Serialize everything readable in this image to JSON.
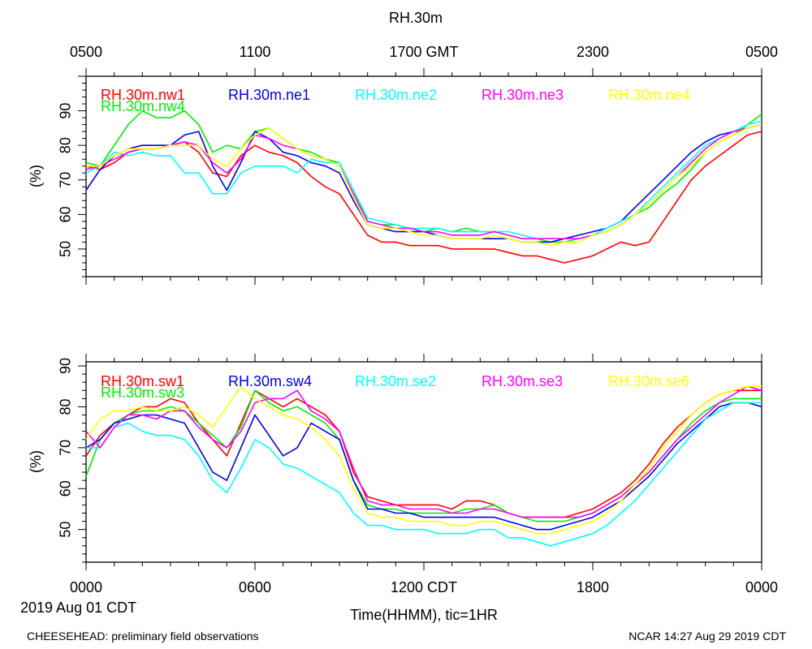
{
  "page": {
    "title": "RH.30m",
    "top_axis_ticks": [
      "0500",
      "1100",
      "1700 GMT",
      "2300",
      "0500"
    ],
    "bottom_axis_ticks": [
      "0000",
      "0600",
      "1200 CDT",
      "1800",
      "0000"
    ],
    "date_label": "2019 Aug 01 CDT",
    "xlabel": "Time(HHMM), tic=1HR",
    "footer_left": "CHEESEHEAD: preliminary field observations",
    "footer_right": "NCAR 14:27 Aug 29 2019 CDT"
  },
  "chart_data": [
    {
      "type": "line",
      "title": "RH.30m",
      "ylabel": "(%)",
      "ylim": [
        42,
        100
      ],
      "yticks": [
        "50",
        "60",
        "70",
        "80",
        "90"
      ],
      "xlim": [
        0,
        24
      ],
      "x": [
        0,
        0.5,
        1,
        1.5,
        2,
        2.5,
        3,
        3.5,
        4,
        4.5,
        5,
        5.5,
        6,
        6.5,
        7,
        7.5,
        8,
        8.5,
        9,
        9.5,
        10,
        10.5,
        11,
        11.5,
        12,
        12.5,
        13,
        13.5,
        14,
        14.5,
        15,
        15.5,
        16,
        16.5,
        17,
        17.5,
        18,
        18.5,
        19,
        19.5,
        20,
        20.5,
        21,
        21.5,
        22,
        22.5,
        23,
        23.5,
        24
      ],
      "series": [
        {
          "name": "RH.30m.nw1",
          "color": "#ff0000",
          "values": [
            74,
            73,
            75,
            78,
            79,
            79,
            80,
            81,
            78,
            72,
            71,
            77,
            80,
            78,
            77,
            75,
            71,
            68,
            66,
            60,
            54,
            52,
            52,
            51,
            51,
            51,
            50,
            50,
            50,
            50,
            49,
            48,
            48,
            47,
            46,
            47,
            48,
            50,
            52,
            51,
            52,
            58,
            64,
            70,
            74,
            77,
            80,
            83,
            84
          ]
        },
        {
          "name": "RH.30m.nw4",
          "color": "#00ee00",
          "values": [
            75,
            74,
            80,
            86,
            90,
            88,
            88,
            90,
            86,
            78,
            80,
            79,
            84,
            85,
            82,
            79,
            78,
            76,
            75,
            67,
            58,
            57,
            57,
            56,
            55,
            56,
            55,
            56,
            55,
            55,
            54,
            53,
            53,
            52,
            52,
            53,
            54,
            55,
            57,
            60,
            62,
            66,
            69,
            73,
            78,
            81,
            83,
            86,
            89
          ]
        },
        {
          "name": "RH.30m.ne1",
          "color": "#0000ee",
          "values": [
            67,
            73,
            77,
            79,
            80,
            80,
            80,
            83,
            84,
            74,
            67,
            75,
            84,
            82,
            78,
            77,
            75,
            74,
            72,
            64,
            57,
            56,
            55,
            55,
            55,
            54,
            53,
            53,
            53,
            53,
            53,
            52,
            52,
            52,
            53,
            54,
            55,
            56,
            58,
            62,
            66,
            70,
            74,
            78,
            81,
            83,
            84,
            85,
            86
          ]
        },
        {
          "name": "RH.30m.ne2",
          "color": "#00ffff",
          "values": [
            72,
            74,
            78,
            77,
            78,
            77,
            77,
            72,
            72,
            66,
            66,
            72,
            74,
            74,
            74,
            72,
            76,
            75,
            75,
            67,
            59,
            58,
            57,
            56,
            56,
            56,
            55,
            55,
            55,
            55,
            55,
            54,
            53,
            53,
            53,
            53,
            54,
            56,
            58,
            60,
            64,
            68,
            72,
            76,
            80,
            82,
            84,
            86,
            87
          ]
        },
        {
          "name": "RH.30m.ne3",
          "color": "#ff00ff",
          "values": [
            73,
            74,
            76,
            78,
            79,
            79,
            80,
            81,
            80,
            75,
            72,
            76,
            83,
            82,
            80,
            79,
            77,
            76,
            74,
            66,
            58,
            57,
            56,
            56,
            55,
            55,
            54,
            54,
            54,
            55,
            54,
            53,
            53,
            53,
            53,
            53,
            54,
            55,
            57,
            60,
            63,
            67,
            71,
            75,
            79,
            82,
            84,
            85,
            86
          ]
        },
        {
          "name": "RH.30m.ne4",
          "color": "#ffff00",
          "values": [
            74,
            74,
            77,
            79,
            79,
            79,
            80,
            80,
            80,
            76,
            74,
            79,
            83,
            85,
            82,
            79,
            77,
            76,
            74,
            65,
            57,
            56,
            56,
            55,
            54,
            54,
            53,
            53,
            53,
            54,
            53,
            52,
            52,
            51,
            52,
            52,
            54,
            55,
            57,
            60,
            63,
            67,
            71,
            74,
            78,
            81,
            83,
            85,
            86
          ]
        }
      ]
    },
    {
      "type": "line",
      "title": "",
      "ylabel": "(%)",
      "ylim": [
        42,
        91
      ],
      "yticks": [
        "50",
        "60",
        "70",
        "80",
        "90"
      ],
      "xlim": [
        0,
        24
      ],
      "xticks": [
        "0000",
        "0600",
        "1200 CDT",
        "1800",
        "0000"
      ],
      "x": [
        0,
        0.5,
        1,
        1.5,
        2,
        2.5,
        3,
        3.5,
        4,
        4.5,
        5,
        5.5,
        6,
        6.5,
        7,
        7.5,
        8,
        8.5,
        9,
        9.5,
        10,
        10.5,
        11,
        11.5,
        12,
        12.5,
        13,
        13.5,
        14,
        14.5,
        15,
        15.5,
        16,
        16.5,
        17,
        17.5,
        18,
        18.5,
        19,
        19.5,
        20,
        20.5,
        21,
        21.5,
        22,
        22.5,
        23,
        23.5,
        24
      ],
      "series": [
        {
          "name": "RH.30m.sw1",
          "color": "#ff0000",
          "values": [
            68,
            73,
            76,
            78,
            80,
            80,
            82,
            81,
            76,
            72,
            68,
            76,
            84,
            82,
            80,
            82,
            80,
            78,
            74,
            64,
            58,
            57,
            56,
            56,
            56,
            56,
            55,
            57,
            57,
            56,
            54,
            53,
            53,
            53,
            53,
            54,
            55,
            57,
            59,
            62,
            66,
            71,
            75,
            78,
            81,
            83,
            84,
            84,
            84
          ]
        },
        {
          "name": "RH.30m.sw3",
          "color": "#00ee00",
          "values": [
            63,
            72,
            76,
            78,
            79,
            79,
            80,
            79,
            76,
            73,
            70,
            75,
            84,
            81,
            79,
            80,
            78,
            76,
            72,
            62,
            56,
            55,
            55,
            54,
            54,
            54,
            54,
            55,
            55,
            56,
            54,
            53,
            52,
            52,
            52,
            53,
            54,
            56,
            58,
            61,
            64,
            68,
            72,
            76,
            79,
            81,
            82,
            82,
            82
          ]
        },
        {
          "name": "RH.30m.sw4",
          "color": "#0000ee",
          "values": [
            70,
            72,
            76,
            77,
            78,
            78,
            77,
            76,
            70,
            64,
            62,
            70,
            78,
            73,
            68,
            70,
            76,
            74,
            72,
            62,
            55,
            55,
            54,
            54,
            53,
            53,
            53,
            53,
            53,
            53,
            52,
            51,
            50,
            50,
            51,
            52,
            53,
            55,
            57,
            60,
            63,
            67,
            71,
            74,
            77,
            80,
            81,
            81,
            80
          ]
        },
        {
          "name": "RH.30m.se2",
          "color": "#00ffff",
          "values": [
            70,
            70,
            75,
            76,
            74,
            73,
            73,
            72,
            68,
            62,
            59,
            65,
            72,
            70,
            66,
            65,
            63,
            61,
            59,
            54,
            51,
            51,
            50,
            50,
            50,
            49,
            49,
            49,
            50,
            50,
            48,
            48,
            47,
            46,
            47,
            48,
            49,
            51,
            54,
            57,
            61,
            65,
            69,
            73,
            77,
            79,
            81,
            81,
            81
          ]
        },
        {
          "name": "RH.30m.se3",
          "color": "#ff00ff",
          "values": [
            74,
            70,
            75,
            78,
            78,
            77,
            79,
            79,
            75,
            72,
            70,
            74,
            81,
            82,
            82,
            84,
            79,
            77,
            74,
            65,
            57,
            56,
            56,
            55,
            55,
            55,
            54,
            54,
            55,
            55,
            54,
            53,
            53,
            53,
            53,
            53,
            54,
            56,
            58,
            61,
            64,
            68,
            72,
            75,
            78,
            81,
            83,
            85,
            84
          ]
        },
        {
          "name": "RH.30m.se6",
          "color": "#ffff00",
          "values": [
            72,
            77,
            79,
            79,
            80,
            79,
            79,
            80,
            78,
            75,
            80,
            85,
            82,
            80,
            78,
            77,
            75,
            72,
            68,
            60,
            54,
            53,
            53,
            52,
            52,
            52,
            51,
            51,
            52,
            52,
            51,
            50,
            49,
            49,
            50,
            51,
            52,
            54,
            57,
            61,
            65,
            70,
            74,
            78,
            81,
            83,
            84,
            85,
            85
          ]
        }
      ]
    }
  ]
}
